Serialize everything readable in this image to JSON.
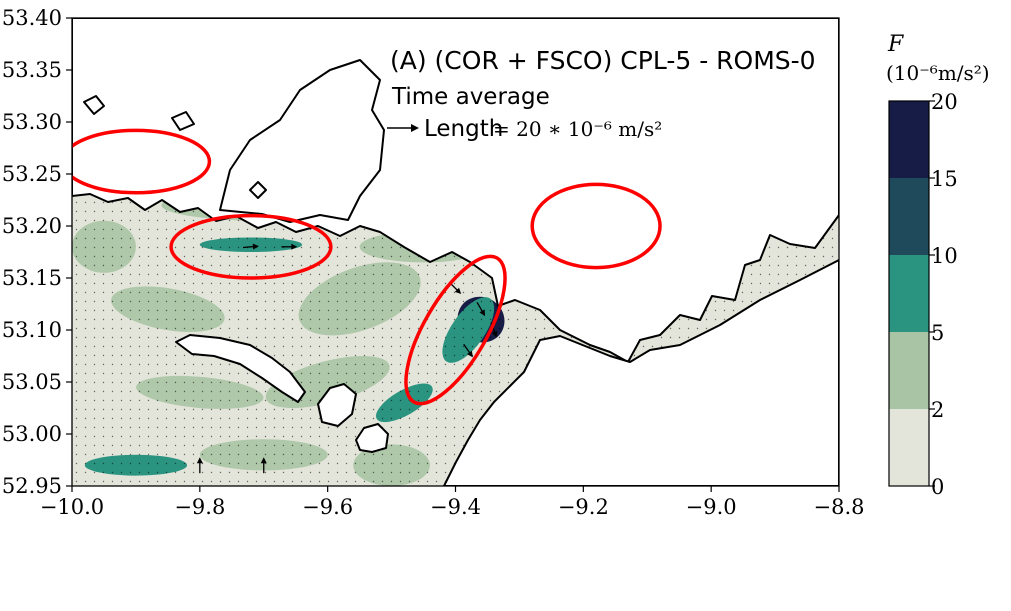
{
  "chart_data": {
    "type": "heatmap",
    "title": "(A) (COR + FSCO) CPL-5 - ROMS-0",
    "subtitle": "Time average",
    "vector_key": {
      "label_text": "Length",
      "label_math": "= 20 ∗ 10⁻⁶ m/s²"
    },
    "xlim": [
      -10.0,
      -8.8
    ],
    "ylim": [
      52.95,
      53.4
    ],
    "x_ticks": [
      -10.0,
      -9.8,
      -9.6,
      -9.4,
      -9.2,
      -9.0,
      -8.8
    ],
    "x_tick_labels": [
      "−10.0",
      "−9.8",
      "−9.6",
      "−9.4",
      "−9.2",
      "−9.0",
      "−8.8"
    ],
    "y_ticks": [
      52.95,
      53.0,
      53.05,
      53.1,
      53.15,
      53.2,
      53.25,
      53.3,
      53.35,
      53.4
    ],
    "y_tick_labels": [
      "52.95",
      "53.00",
      "53.05",
      "53.10",
      "53.15",
      "53.20",
      "53.25",
      "53.30",
      "53.35",
      "53.40"
    ],
    "colorbar": {
      "label": "F",
      "unit": "(10⁻⁶m/s²)",
      "levels": [
        0,
        2,
        5,
        10,
        15,
        20
      ],
      "level_labels": [
        "0",
        "2",
        "5",
        "10",
        "15",
        "20"
      ],
      "colors": [
        "#e3e5da",
        "#a8c4a4",
        "#2a9480",
        "#1e4a5c",
        "#161c46"
      ]
    },
    "colors": {
      "land": "#ffffff",
      "coast": "#000000",
      "highlight_ellipse": "#ff0000",
      "arrow": "#000000"
    },
    "highlight_regions": [
      {
        "center": [
          -9.9,
          53.262
        ],
        "rx": 0.115,
        "ry": 0.03,
        "angle_deg": 0
      },
      {
        "center": [
          -9.72,
          53.18
        ],
        "rx": 0.125,
        "ry": 0.03,
        "angle_deg": 0
      },
      {
        "center": [
          -9.4,
          53.1
        ],
        "rx": 0.13,
        "ry": 0.03,
        "angle_deg": -60
      },
      {
        "center": [
          -9.18,
          53.2
        ],
        "rx": 0.1,
        "ry": 0.04,
        "angle_deg": 0
      }
    ],
    "shaded_features": [
      {
        "center": [
          -9.36,
          53.11
        ],
        "rx": 0.035,
        "ry": 0.023,
        "angle_deg": -55,
        "level": 4
      },
      {
        "center": [
          -9.38,
          53.1
        ],
        "rx": 0.06,
        "ry": 0.016,
        "angle_deg": -55,
        "level": 2
      },
      {
        "center": [
          -9.18,
          53.205
        ],
        "rx": 0.06,
        "ry": 0.01,
        "angle_deg": 0,
        "level": 2
      },
      {
        "center": [
          -9.72,
          53.182
        ],
        "rx": 0.08,
        "ry": 0.007,
        "angle_deg": 0,
        "level": 2
      },
      {
        "center": [
          -9.96,
          53.262
        ],
        "rx": 0.02,
        "ry": 0.011,
        "angle_deg": 0,
        "level": 2
      },
      {
        "center": [
          -9.48,
          53.03
        ],
        "rx": 0.05,
        "ry": 0.012,
        "angle_deg": -30,
        "level": 2
      },
      {
        "center": [
          -9.9,
          52.97
        ],
        "rx": 0.08,
        "ry": 0.01,
        "angle_deg": 0,
        "level": 2
      }
    ],
    "grid": false
  }
}
